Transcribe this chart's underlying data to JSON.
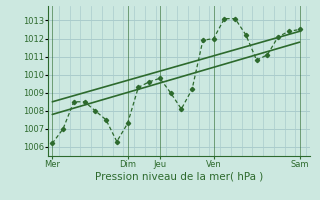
{
  "background_color": "#cce8e0",
  "grid_color_major": "#aacccc",
  "grid_color_minor": "#bbd8d4",
  "line_color": "#2d6a2d",
  "title": "Pression niveau de la mer( hPa )",
  "ylim": [
    1005.5,
    1013.8
  ],
  "yticks": [
    1006,
    1007,
    1008,
    1009,
    1010,
    1011,
    1012,
    1013
  ],
  "xlim": [
    0,
    12.2
  ],
  "xlabel_ticks_pos": [
    0.2,
    3.7,
    5.2,
    7.7,
    11.7
  ],
  "xlabel_labels": [
    "Mer",
    "Dim",
    "Jeu",
    "Ven",
    "Sam"
  ],
  "vlines": [
    0.2,
    3.7,
    5.2,
    7.7,
    11.7
  ],
  "main_x": [
    0.2,
    0.7,
    1.2,
    1.7,
    2.2,
    2.7,
    3.2,
    3.7,
    4.2,
    4.7,
    5.2,
    5.7,
    6.2,
    6.7,
    7.2,
    7.7,
    8.2,
    8.7,
    9.2,
    9.7,
    10.2,
    10.7,
    11.2,
    11.7
  ],
  "main_y": [
    1006.2,
    1007.0,
    1008.5,
    1008.5,
    1008.0,
    1007.5,
    1006.3,
    1007.3,
    1009.3,
    1009.6,
    1009.8,
    1009.0,
    1008.1,
    1009.2,
    1011.9,
    1012.0,
    1013.1,
    1013.1,
    1012.2,
    1010.8,
    1011.1,
    1012.1,
    1012.4,
    1012.5
  ],
  "trend1_x": [
    0.2,
    11.7
  ],
  "trend1_y": [
    1008.5,
    1012.4
  ],
  "trend2_x": [
    0.2,
    11.7
  ],
  "trend2_y": [
    1007.8,
    1011.8
  ],
  "title_fontsize": 7.5,
  "tick_fontsize": 6.0
}
